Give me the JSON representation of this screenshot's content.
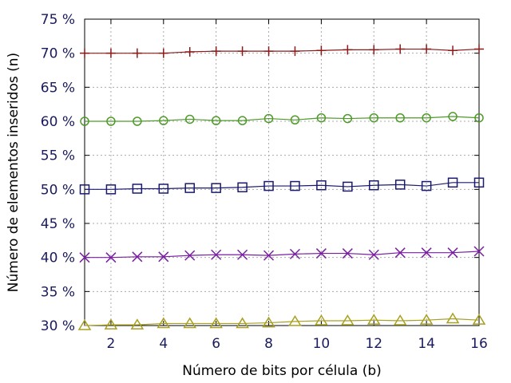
{
  "chart_data": {
    "type": "line",
    "title": "",
    "xlabel": "Número de bits por célula (b)",
    "ylabel": "Número de elementos inseridos (n)",
    "xlim": [
      1,
      16
    ],
    "ylim": [
      30,
      75
    ],
    "x_ticks": [
      2,
      4,
      6,
      8,
      10,
      12,
      14,
      16
    ],
    "y_ticks": [
      30,
      35,
      40,
      45,
      50,
      55,
      60,
      65,
      70,
      75
    ],
    "y_tick_labels": [
      "30 %",
      "35 %",
      "40 %",
      "45 %",
      "50 %",
      "55 %",
      "60 %",
      "65 %",
      "70 %",
      "75 %"
    ],
    "grid": true,
    "legend": "none",
    "x": [
      1,
      2,
      3,
      4,
      5,
      6,
      7,
      8,
      9,
      10,
      11,
      12,
      13,
      14,
      15,
      16
    ],
    "series": [
      {
        "marker": "plus",
        "color": "#8b1a1a",
        "values": [
          70.0,
          70.0,
          70.0,
          70.0,
          70.2,
          70.3,
          70.3,
          70.3,
          70.3,
          70.4,
          70.5,
          70.5,
          70.6,
          70.6,
          70.4,
          70.6
        ]
      },
      {
        "marker": "circle",
        "color": "#4e9a2a",
        "values": [
          60.0,
          60.0,
          60.0,
          60.1,
          60.3,
          60.1,
          60.1,
          60.4,
          60.2,
          60.5,
          60.4,
          60.5,
          60.5,
          60.5,
          60.7,
          60.5
        ]
      },
      {
        "marker": "square",
        "color": "#1a1a6e",
        "values": [
          50.0,
          50.0,
          50.1,
          50.1,
          50.2,
          50.2,
          50.3,
          50.5,
          50.5,
          50.6,
          50.4,
          50.6,
          50.7,
          50.5,
          51.0,
          51.0
        ]
      },
      {
        "marker": "x",
        "color": "#7a1fa2",
        "values": [
          40.0,
          40.0,
          40.1,
          40.1,
          40.3,
          40.4,
          40.4,
          40.3,
          40.5,
          40.6,
          40.6,
          40.4,
          40.7,
          40.7,
          40.7,
          40.9
        ]
      },
      {
        "marker": "triangle",
        "color": "#a8a020",
        "values": [
          30.0,
          30.1,
          30.1,
          30.3,
          30.3,
          30.3,
          30.3,
          30.4,
          30.6,
          30.7,
          30.7,
          30.8,
          30.7,
          30.8,
          31.0,
          30.8
        ]
      }
    ]
  }
}
